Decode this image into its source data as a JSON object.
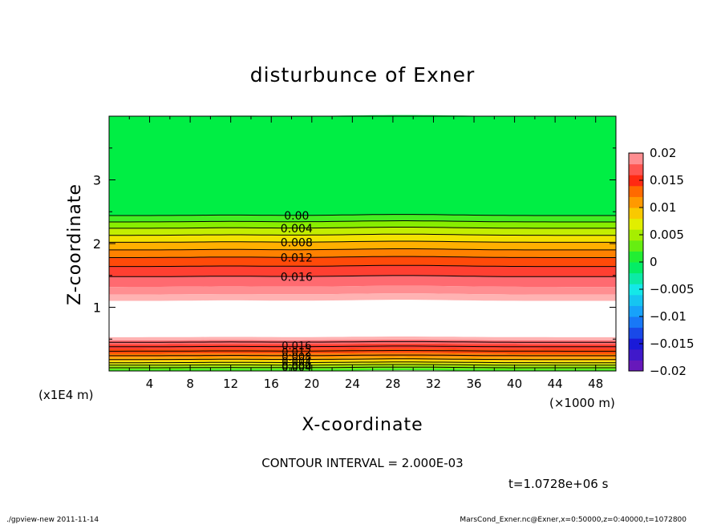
{
  "chart_data": {
    "type": "heatmap",
    "title": "disturbunce of Exner",
    "xlabel": "X-coordinate",
    "ylabel": "Z-coordinate",
    "x_scale_label": "(×1000 m)",
    "y_scale_label": "(x1E4 m)",
    "x_ticks": [
      4,
      8,
      12,
      16,
      20,
      24,
      28,
      32,
      36,
      40,
      44,
      48
    ],
    "y_ticks": [
      1,
      2,
      3
    ],
    "xlim": [
      0,
      50
    ],
    "ylim": [
      0,
      4
    ],
    "contour_interval": "CONTOUR INTERVAL = 2.000E-03",
    "time_label": "t=1.0728e+06 s",
    "colorbar": {
      "ticks": [
        "0.02",
        "0.015",
        "0.01",
        "0.005",
        "0",
        "−0.005",
        "−0.01",
        "−0.015",
        "−0.02"
      ],
      "range": [
        -0.02,
        0.02
      ]
    },
    "contour_labels_upper": [
      "0.00",
      "0.004",
      "0.008",
      "0.012",
      "0.016"
    ],
    "contour_labels_lower": [
      "0.016",
      "0.012",
      "0.008",
      "0.004",
      "0.000",
      "0.004"
    ],
    "bands_upper": [
      {
        "z": [
          2.44,
          4.0
        ],
        "v": 0.0
      },
      {
        "z": [
          2.34,
          2.44
        ],
        "v": 0.002
      },
      {
        "z": [
          2.24,
          2.34
        ],
        "v": 0.004
      },
      {
        "z": [
          2.13,
          2.24
        ],
        "v": 0.006
      },
      {
        "z": [
          2.02,
          2.13
        ],
        "v": 0.008
      },
      {
        "z": [
          1.9,
          2.02
        ],
        "v": 0.01
      },
      {
        "z": [
          1.78,
          1.9
        ],
        "v": 0.012
      },
      {
        "z": [
          1.64,
          1.78
        ],
        "v": 0.014
      },
      {
        "z": [
          1.48,
          1.64
        ],
        "v": 0.016
      },
      {
        "z": [
          1.32,
          1.48
        ],
        "v": 0.018
      },
      {
        "z": [
          1.2,
          1.32
        ],
        "v": 0.019
      },
      {
        "z": [
          1.1,
          1.2
        ],
        "v": 0.02
      }
    ],
    "bands_lower": [
      {
        "z": [
          0.48,
          0.53
        ],
        "v": 0.02
      },
      {
        "z": [
          0.42,
          0.48
        ],
        "v": 0.018
      },
      {
        "z": [
          0.34,
          0.42
        ],
        "v": 0.016
      },
      {
        "z": [
          0.27,
          0.34
        ],
        "v": 0.014
      },
      {
        "z": [
          0.21,
          0.27
        ],
        "v": 0.012
      },
      {
        "z": [
          0.16,
          0.21
        ],
        "v": 0.01
      },
      {
        "z": [
          0.11,
          0.16
        ],
        "v": 0.008
      },
      {
        "z": [
          0.07,
          0.11
        ],
        "v": 0.006
      },
      {
        "z": [
          0.03,
          0.07
        ],
        "v": 0.004
      },
      {
        "z": [
          0.0,
          0.03
        ],
        "v": 0.002
      }
    ]
  },
  "footer": {
    "left": "./gpview-new   2011-11-14",
    "right": "MarsCond_Exner.nc@Exner,x=0:50000,z=0:40000,t=1072800"
  }
}
